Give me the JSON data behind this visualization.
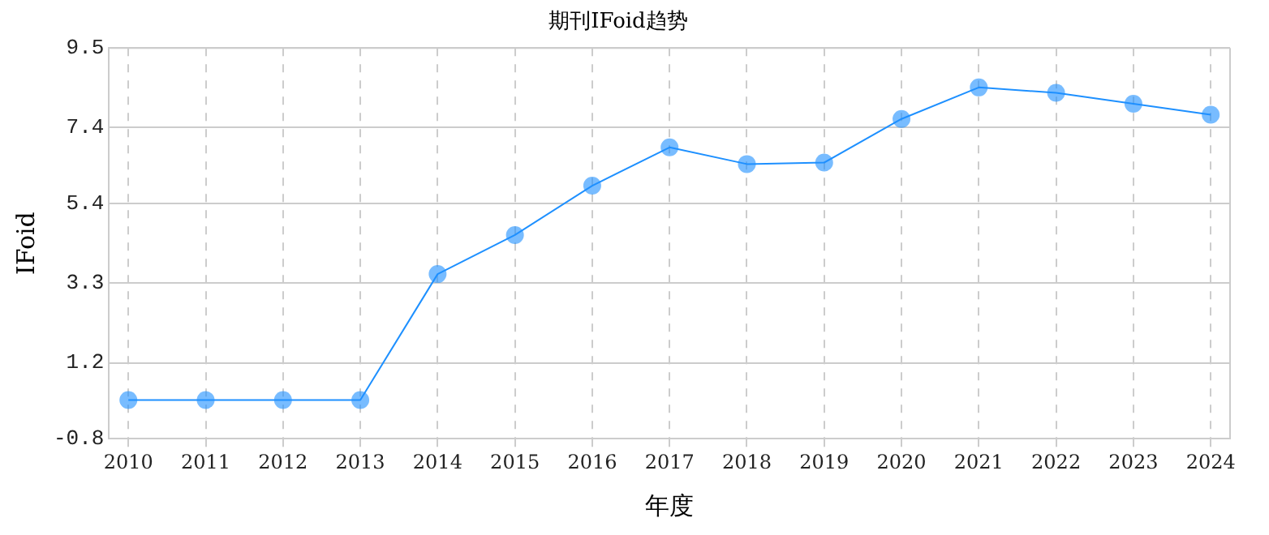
{
  "chart_data": {
    "type": "line",
    "title": "期刊IFoid趋势",
    "xlabel": "年度",
    "ylabel": "IFoid",
    "categories": [
      "2010",
      "2011",
      "2012",
      "2013",
      "2014",
      "2015",
      "2016",
      "2017",
      "2018",
      "2019",
      "2020",
      "2021",
      "2022",
      "2023",
      "2024"
    ],
    "series": [
      {
        "color": "#1e90ff",
        "values": [
          0.22,
          0.22,
          0.22,
          0.22,
          3.54,
          4.57,
          5.87,
          6.88,
          6.44,
          6.48,
          7.63,
          8.46,
          8.32,
          8.03,
          7.74
        ]
      }
    ],
    "ylim": [
      -0.8,
      9.5
    ],
    "yticks": [
      -0.8,
      1.2,
      3.3,
      5.4,
      7.4,
      9.5
    ],
    "grid": true,
    "marker": "circle",
    "line_style": "solid",
    "legend": false
  }
}
